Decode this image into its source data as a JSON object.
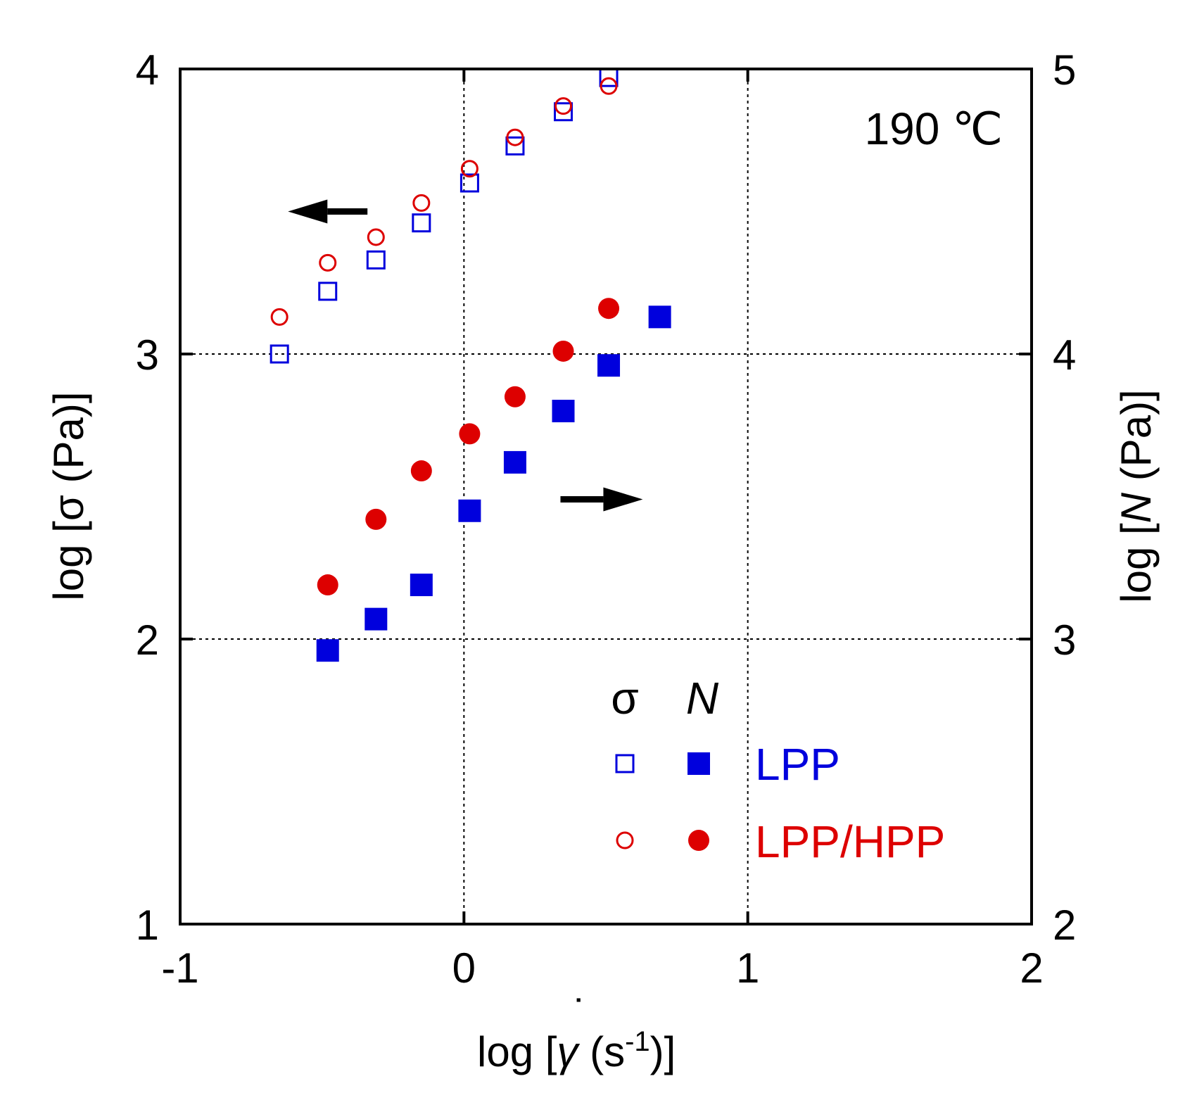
{
  "chart_data": {
    "type": "scatter",
    "annotation": "190 ℃",
    "xlabel": {
      "pre": "log [",
      "gamma": "γ",
      "dot": "˙",
      "mid": " (s",
      "sup": "-1",
      "post": ")]"
    },
    "ylabel_left": {
      "text": "log [σ (Pa)]"
    },
    "ylabel_right": {
      "pre": "log [",
      "italic": "N",
      "post": " (Pa)]"
    },
    "xlim": [
      -1,
      2
    ],
    "ylim_left": [
      1,
      4
    ],
    "ylim_right": [
      2,
      5
    ],
    "xticks": [
      -1,
      0,
      1,
      2
    ],
    "xtick_labels": [
      "-1",
      "0",
      "1",
      "2"
    ],
    "yticks_left": [
      1,
      2,
      3,
      4
    ],
    "ytick_labels_left": [
      "1",
      "2",
      "3",
      "4"
    ],
    "yticks_right": [
      2,
      3,
      4,
      5
    ],
    "ytick_labels_right": [
      "2",
      "3",
      "4",
      "5"
    ],
    "grid": "dotted at x=0, x=1, y=2, y=3",
    "colors": {
      "LPP": "#0000dd",
      "LPP/HPP": "#dd0000",
      "arrow": "#000000"
    },
    "series": [
      {
        "name": "LPP σ",
        "axis": "left",
        "marker": "open-square",
        "color": "#0000dd",
        "x": [
          -0.65,
          -0.48,
          -0.31,
          -0.15,
          0.02,
          0.18,
          0.35,
          0.51
        ],
        "y": [
          3.0,
          3.22,
          3.33,
          3.46,
          3.6,
          3.73,
          3.85,
          3.97
        ]
      },
      {
        "name": "LPP/HPP σ",
        "axis": "left",
        "marker": "open-circle",
        "color": "#dd0000",
        "x": [
          -0.65,
          -0.48,
          -0.31,
          -0.15,
          0.02,
          0.18,
          0.35,
          0.51
        ],
        "y": [
          3.13,
          3.32,
          3.41,
          3.53,
          3.65,
          3.76,
          3.87,
          3.94
        ]
      },
      {
        "name": "LPP N",
        "axis": "right",
        "marker": "filled-square",
        "color": "#0000dd",
        "x": [
          -0.48,
          -0.31,
          -0.15,
          0.02,
          0.18,
          0.35,
          0.51,
          0.69
        ],
        "y": [
          2.96,
          3.07,
          3.19,
          3.45,
          3.62,
          3.8,
          3.96,
          4.13
        ]
      },
      {
        "name": "LPP/HPP N",
        "axis": "right",
        "marker": "filled-circle",
        "color": "#dd0000",
        "x": [
          -0.48,
          -0.31,
          -0.15,
          0.02,
          0.18,
          0.35,
          0.51
        ],
        "y": [
          3.19,
          3.42,
          3.59,
          3.72,
          3.85,
          4.01,
          4.16
        ]
      }
    ],
    "arrows": [
      {
        "direction": "left",
        "x": [
          -0.34,
          -0.62
        ],
        "y": 3.5
      },
      {
        "direction": "right",
        "x": [
          0.34,
          0.63
        ],
        "y": 2.49
      }
    ],
    "legend": {
      "placement": "bottom-right",
      "header_sigma": "σ",
      "header_N": "N",
      "entries": [
        {
          "label": "LPP",
          "color": "#0000dd",
          "open_marker": "open-square",
          "filled_marker": "filled-square"
        },
        {
          "label": "LPP/HPP",
          "color": "#dd0000",
          "open_marker": "open-circle",
          "filled_marker": "filled-circle"
        }
      ]
    }
  }
}
